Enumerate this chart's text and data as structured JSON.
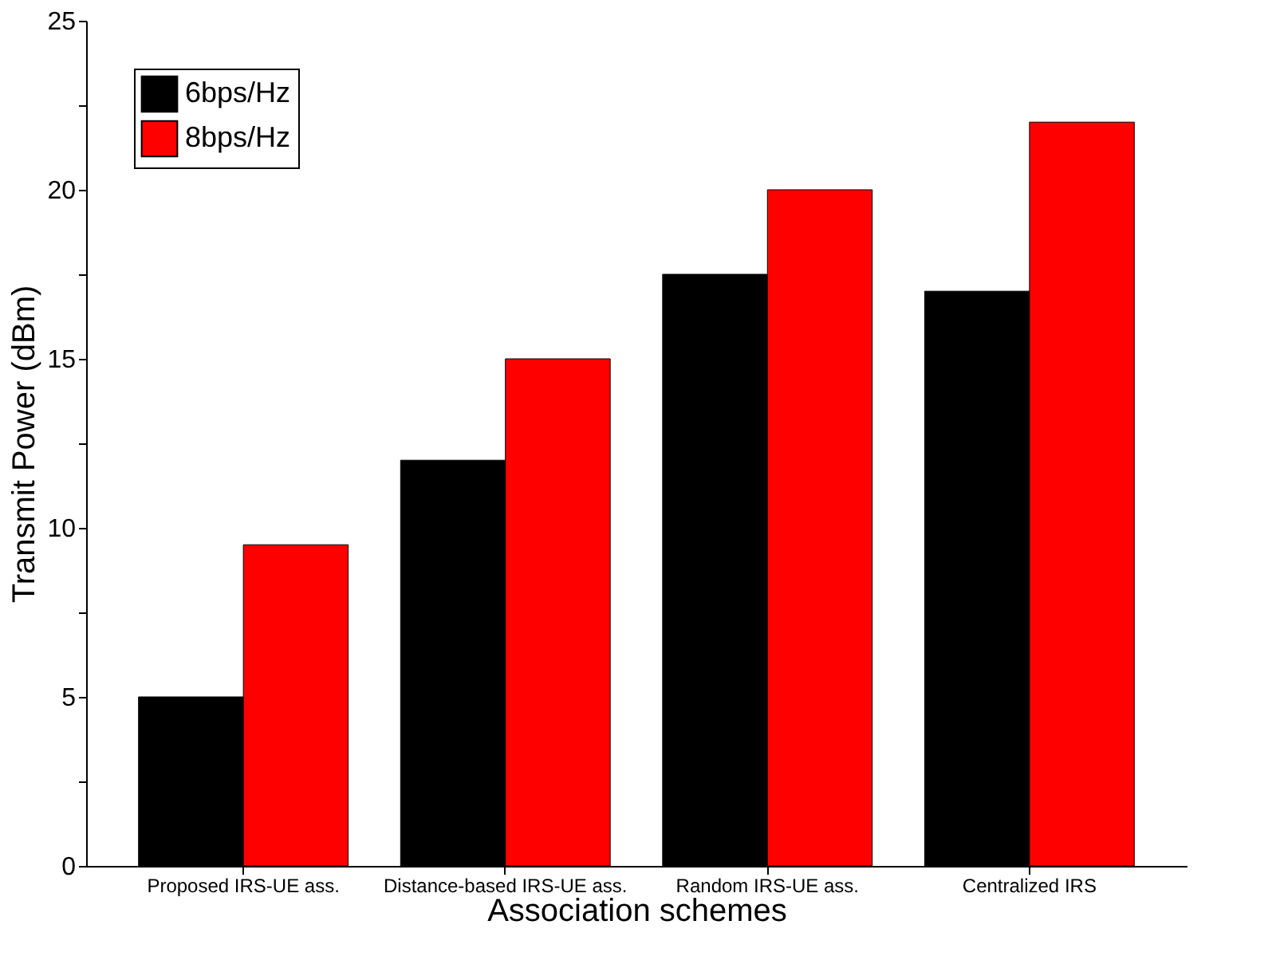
{
  "chart_data": {
    "type": "bar",
    "xlabel": "Association schemes",
    "ylabel": "Transmit Power (dBm)",
    "categories": [
      "Proposed IRS-UE ass.",
      "Distance-based IRS-UE ass.",
      "Random IRS-UE ass.",
      "Centralized IRS"
    ],
    "series": [
      {
        "name": "6bps/Hz",
        "color": "#000000",
        "values": [
          5,
          12,
          17.5,
          17
        ]
      },
      {
        "name": "8bps/Hz",
        "color": "#ff0000",
        "values": [
          9.5,
          15,
          20,
          22
        ]
      }
    ],
    "ylim": [
      0,
      25
    ],
    "yticks": [
      0,
      {
        "value": 2.5,
        "label": null
      },
      5,
      {
        "value": 7.5,
        "label": null
      },
      10,
      {
        "value": 12.5,
        "label": null
      },
      15,
      {
        "value": 17.5,
        "label": null
      },
      20,
      {
        "value": 22.5,
        "label": null
      },
      25
    ],
    "grid": false,
    "legend": "top left"
  }
}
